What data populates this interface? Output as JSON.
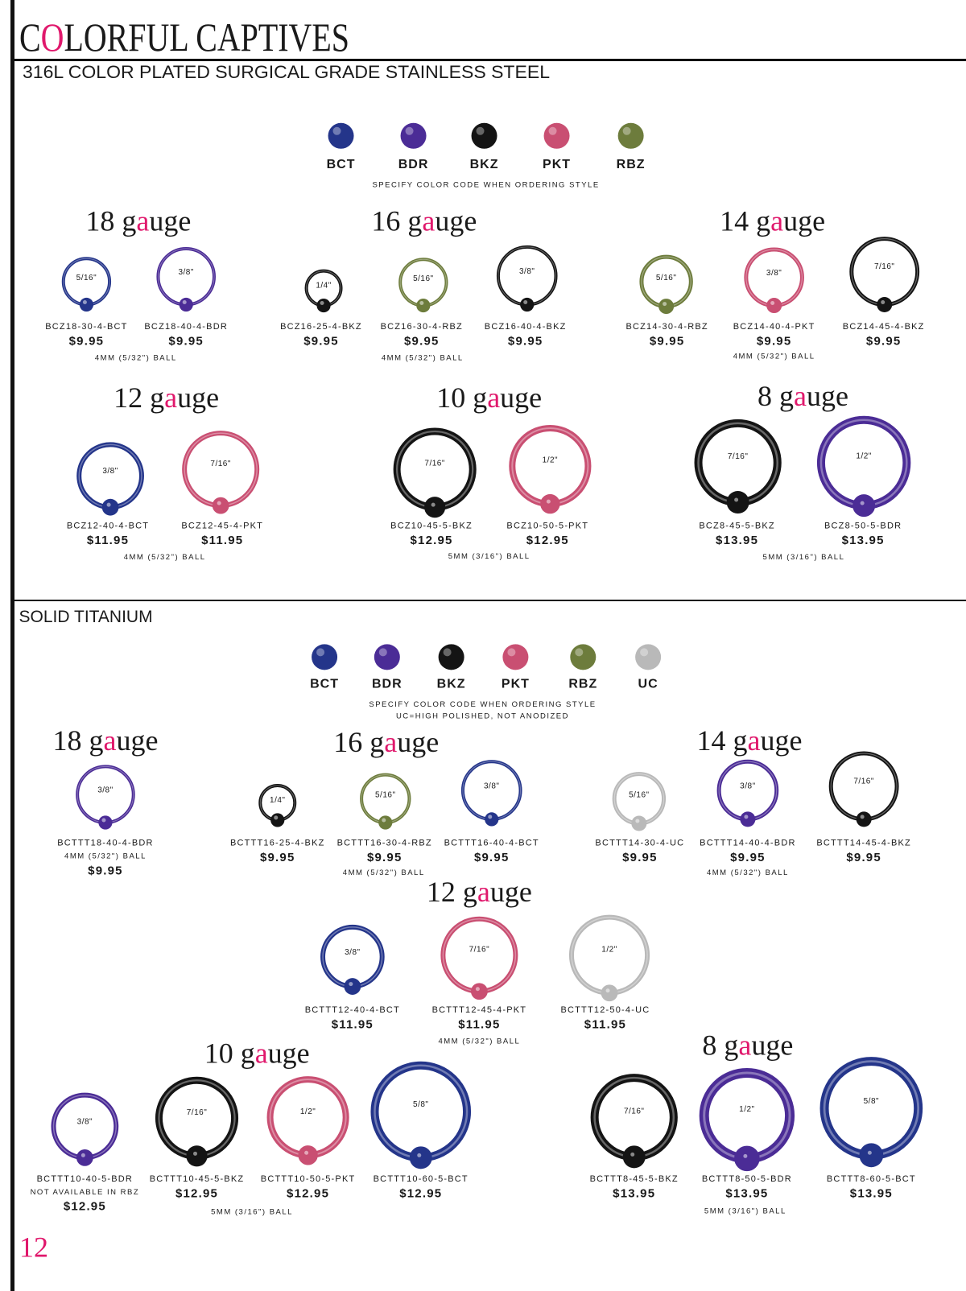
{
  "header": {
    "title": "COLORFUL CAPTIVES",
    "subtitle": "316L COLOR PLATED SURGICAL GRADE STAINLESS STEEL"
  },
  "sections": [
    {
      "swatches": [
        {
          "code": "BCT",
          "color": "#24358a"
        },
        {
          "code": "BDR",
          "color": "#4b2c96"
        },
        {
          "code": "BKZ",
          "color": "#141414"
        },
        {
          "code": "PKT",
          "color": "#c94f72"
        },
        {
          "code": "RBZ",
          "color": "#6d7c3c"
        }
      ],
      "notes": [
        "SPECIFY COLOR CODE WHEN ORDERING STYLE"
      ],
      "groups": [
        {
          "gauge": "18 gauge",
          "note": "4MM (5/32\") BALL",
          "items": [
            {
              "size": "5/16\"",
              "code": "BCZ18-30-4-BCT",
              "price": "$9.95"
            },
            {
              "size": "3/8\"",
              "code": "BCZ18-40-4-BDR",
              "price": "$9.95"
            }
          ]
        },
        {
          "gauge": "16 gauge",
          "note": "4MM (5/32\") BALL",
          "items": [
            {
              "size": "1/4\"",
              "code": "BCZ16-25-4-BKZ",
              "price": "$9.95"
            },
            {
              "size": "5/16\"",
              "code": "BCZ16-30-4-RBZ",
              "price": "$9.95"
            },
            {
              "size": "3/8\"",
              "code": "BCZ16-40-4-BKZ",
              "price": "$9.95"
            }
          ]
        },
        {
          "gauge": "14 gauge",
          "note": "4MM (5/32\") BALL",
          "items": [
            {
              "size": "5/16\"",
              "code": "BCZ14-30-4-RBZ",
              "price": "$9.95"
            },
            {
              "size": "3/8\"",
              "code": "BCZ14-40-4-PKT",
              "price": "$9.95"
            },
            {
              "size": "7/16\"",
              "code": "BCZ14-45-4-BKZ",
              "price": "$9.95"
            }
          ]
        },
        {
          "gauge": "12 gauge",
          "note": "4MM (5/32\") BALL",
          "items": [
            {
              "size": "3/8\"",
              "code": "BCZ12-40-4-BCT",
              "price": "$11.95"
            },
            {
              "size": "7/16\"",
              "code": "BCZ12-45-4-PKT",
              "price": "$11.95"
            }
          ]
        },
        {
          "gauge": "10 gauge",
          "note": "5MM (3/16\") BALL",
          "items": [
            {
              "size": "7/16\"",
              "code": "BCZ10-45-5-BKZ",
              "price": "$12.95"
            },
            {
              "size": "1/2\"",
              "code": "BCZ10-50-5-PKT",
              "price": "$12.95"
            }
          ]
        },
        {
          "gauge": "8 gauge",
          "note": "5MM (3/16\") BALL",
          "items": [
            {
              "size": "7/16\"",
              "code": "BCZ8-45-5-BKZ",
              "price": "$13.95"
            },
            {
              "size": "1/2\"",
              "code": "BCZ8-50-5-BDR",
              "price": "$13.95"
            }
          ]
        }
      ]
    },
    {
      "heading": "SOLID TITANIUM",
      "swatches": [
        {
          "code": "BCT",
          "color": "#24358a"
        },
        {
          "code": "BDR",
          "color": "#4b2c96"
        },
        {
          "code": "BKZ",
          "color": "#141414"
        },
        {
          "code": "PKT",
          "color": "#c94f72"
        },
        {
          "code": "RBZ",
          "color": "#6d7c3c"
        },
        {
          "code": "UC",
          "color": "#b9b9b9"
        }
      ],
      "notes": [
        "SPECIFY COLOR CODE WHEN ORDERING STYLE",
        "UC=HIGH POLISHED, NOT ANODIZED"
      ],
      "groups": [
        {
          "gauge": "18 gauge",
          "items": [
            {
              "size": "3/8\"",
              "code": "BCTTT18-40-4-BDR",
              "note": "4MM (5/32\") BALL",
              "price": "$9.95"
            }
          ]
        },
        {
          "gauge": "16 gauge",
          "note": "4MM (5/32\") BALL",
          "items": [
            {
              "size": "1/4\"",
              "code": "BCTTT16-25-4-BKZ",
              "price": "$9.95"
            },
            {
              "size": "5/16\"",
              "code": "BCTTT16-30-4-RBZ",
              "price": "$9.95"
            },
            {
              "size": "3/8\"",
              "code": "BCTTT16-40-4-BCT",
              "price": "$9.95"
            }
          ]
        },
        {
          "gauge": "14 gauge",
          "note": "4MM (5/32\") BALL",
          "items": [
            {
              "size": "5/16\"",
              "code": "BCTTT14-30-4-UC",
              "price": "$9.95"
            },
            {
              "size": "3/8\"",
              "code": "BCTTT14-40-4-BDR",
              "price": "$9.95"
            },
            {
              "size": "7/16\"",
              "code": "BCTTT14-45-4-BKZ",
              "price": "$9.95"
            }
          ]
        },
        {
          "gauge": "12 gauge",
          "note": "4MM (5/32\") BALL",
          "items": [
            {
              "size": "3/8\"",
              "code": "BCTTT12-40-4-BCT",
              "price": "$11.95"
            },
            {
              "size": "7/16\"",
              "code": "BCTTT12-45-4-PKT",
              "price": "$11.95"
            },
            {
              "size": "1/2\"",
              "code": "BCTTT12-50-4-UC",
              "price": "$11.95"
            }
          ]
        },
        {
          "gauge": "10 gauge",
          "note": "5MM (3/16\") BALL",
          "items": [
            {
              "size": "3/8\"",
              "code": "BCTTT10-40-5-BDR",
              "note": "NOT AVAILABLE IN RBZ",
              "price": "$12.95"
            },
            {
              "size": "7/16\"",
              "code": "BCTTT10-45-5-BKZ",
              "price": "$12.95"
            },
            {
              "size": "1/2\"",
              "code": "BCTTT10-50-5-PKT",
              "price": "$12.95"
            },
            {
              "size": "5/8\"",
              "code": "BCTTT10-60-5-BCT",
              "price": "$12.95"
            }
          ]
        },
        {
          "gauge": "8 gauge",
          "note": "5MM (3/16\") BALL",
          "items": [
            {
              "size": "7/16\"",
              "code": "BCTTT8-45-5-BKZ",
              "price": "$13.95"
            },
            {
              "size": "1/2\"",
              "code": "BCTTT8-50-5-BDR",
              "price": "$13.95"
            },
            {
              "size": "5/8\"",
              "code": "BCTTT8-60-5-BCT",
              "price": "$13.95"
            }
          ]
        }
      ]
    }
  ],
  "page_number": "12"
}
